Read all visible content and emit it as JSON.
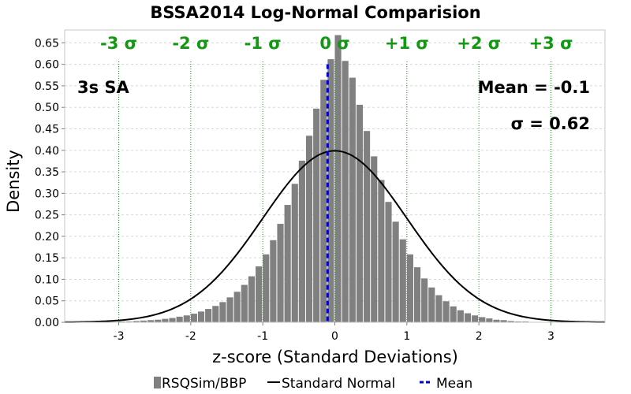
{
  "chart_data": {
    "type": "bar",
    "title": "BSSA2014 Log-Normal Comparision",
    "xlabel": "z-score (Standard Deviations)",
    "ylabel": "Density",
    "xlim": [
      -3.75,
      3.75
    ],
    "ylim": [
      0,
      0.68
    ],
    "xticks": [
      -3,
      -2,
      -1,
      0,
      1,
      2,
      3
    ],
    "yticks": [
      0.0,
      0.05,
      0.1,
      0.15,
      0.2,
      0.25,
      0.3,
      0.35,
      0.4,
      0.45,
      0.5,
      0.55,
      0.6,
      0.65
    ],
    "ytick_labels": [
      "0.00",
      "0.05",
      "0.10",
      "0.15",
      "0.20",
      "0.25",
      "0.30",
      "0.35",
      "0.40",
      "0.45",
      "0.50",
      "0.55",
      "0.60",
      "0.65"
    ],
    "grid": true,
    "legend_position": "bottom",
    "colors": {
      "bars": "#808080",
      "normal_curve": "#000000",
      "mean_line": "#0000cc",
      "sigma_lines": "#129812",
      "grid": "#d8d8d8"
    },
    "series": [
      {
        "name": "RSQSim/BBP",
        "type": "bar",
        "bin_width": 0.1,
        "x": [
          -3.25,
          -3.15,
          -3.05,
          -2.95,
          -2.85,
          -2.75,
          -2.65,
          -2.55,
          -2.45,
          -2.35,
          -2.25,
          -2.15,
          -2.05,
          -1.95,
          -1.85,
          -1.75,
          -1.65,
          -1.55,
          -1.45,
          -1.35,
          -1.25,
          -1.15,
          -1.05,
          -0.95,
          -0.85,
          -0.75,
          -0.65,
          -0.55,
          -0.45,
          -0.35,
          -0.25,
          -0.15,
          -0.05,
          0.05,
          0.15,
          0.25,
          0.35,
          0.45,
          0.55,
          0.65,
          0.75,
          0.85,
          0.95,
          1.05,
          1.15,
          1.25,
          1.35,
          1.45,
          1.55,
          1.65,
          1.75,
          1.85,
          1.95,
          2.05,
          2.15,
          2.25,
          2.35,
          2.45,
          2.55,
          2.65,
          2.75,
          2.85,
          2.95
        ],
        "values": [
          0.001,
          0.001,
          0.001,
          0.002,
          0.002,
          0.003,
          0.004,
          0.005,
          0.006,
          0.008,
          0.01,
          0.013,
          0.016,
          0.02,
          0.025,
          0.031,
          0.038,
          0.047,
          0.058,
          0.071,
          0.087,
          0.107,
          0.13,
          0.158,
          0.191,
          0.229,
          0.273,
          0.322,
          0.376,
          0.434,
          0.497,
          0.564,
          0.612,
          0.668,
          0.608,
          0.569,
          0.506,
          0.445,
          0.386,
          0.331,
          0.28,
          0.234,
          0.193,
          0.158,
          0.128,
          0.102,
          0.081,
          0.063,
          0.049,
          0.037,
          0.028,
          0.021,
          0.016,
          0.012,
          0.009,
          0.006,
          0.005,
          0.003,
          0.002,
          0.002,
          0.001,
          0.001,
          0.001
        ]
      },
      {
        "name": "Standard Normal",
        "type": "line",
        "mean": 0,
        "sd": 1
      },
      {
        "name": "Mean",
        "type": "vline",
        "x": -0.1
      }
    ],
    "sigma_lines": [
      {
        "x": -3,
        "label": "-3 σ"
      },
      {
        "x": -2,
        "label": "-2 σ"
      },
      {
        "x": -1,
        "label": "-1 σ"
      },
      {
        "x": 0,
        "label": "0 σ"
      },
      {
        "x": 1,
        "label": "+1 σ"
      },
      {
        "x": 2,
        "label": "+2 σ"
      },
      {
        "x": 3,
        "label": "+3 σ"
      }
    ],
    "annotations": {
      "period": "3s SA",
      "mean": "Mean = -0.1",
      "sigma": "σ = 0.62"
    }
  }
}
